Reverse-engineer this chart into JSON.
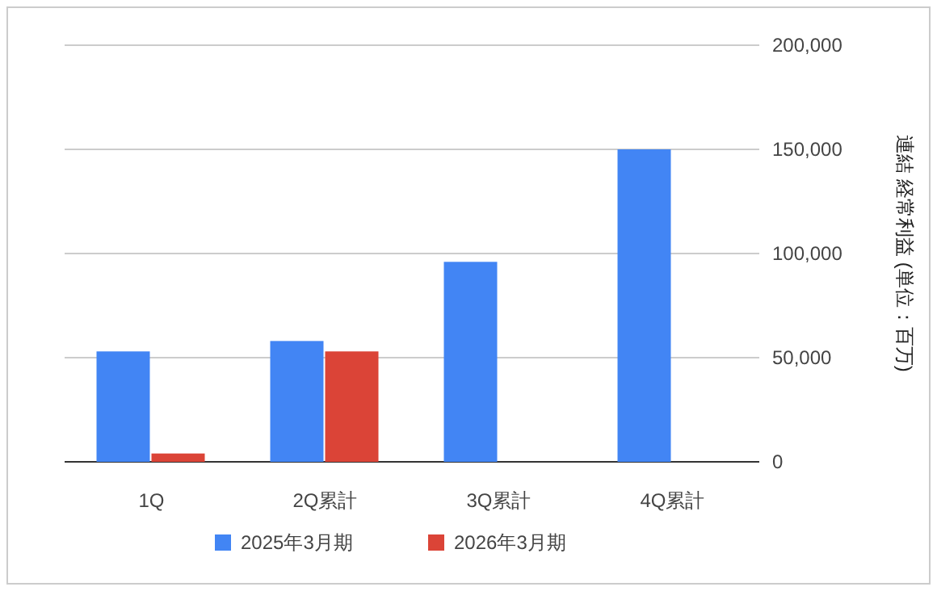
{
  "chart_data": {
    "type": "bar",
    "categories": [
      "1Q",
      "2Q累計",
      "3Q累計",
      "4Q累計"
    ],
    "series": [
      {
        "name": "2025年3月期",
        "color": "#4285f4",
        "values": [
          53000,
          58000,
          96000,
          150000
        ]
      },
      {
        "name": "2026年3月期",
        "color": "#db4437",
        "values": [
          4000,
          53000,
          null,
          null
        ]
      }
    ],
    "ylabel": "連結 経常利益 (単位：百万)",
    "ylim": [
      0,
      200000
    ],
    "yticks": [
      {
        "value": 0,
        "label": "0"
      },
      {
        "value": 50000,
        "label": "50,000"
      },
      {
        "value": 100000,
        "label": "100,000"
      },
      {
        "value": 150000,
        "label": "150,000"
      },
      {
        "value": 200000,
        "label": "200,000"
      }
    ],
    "grid": "y",
    "legend": "bottom"
  }
}
